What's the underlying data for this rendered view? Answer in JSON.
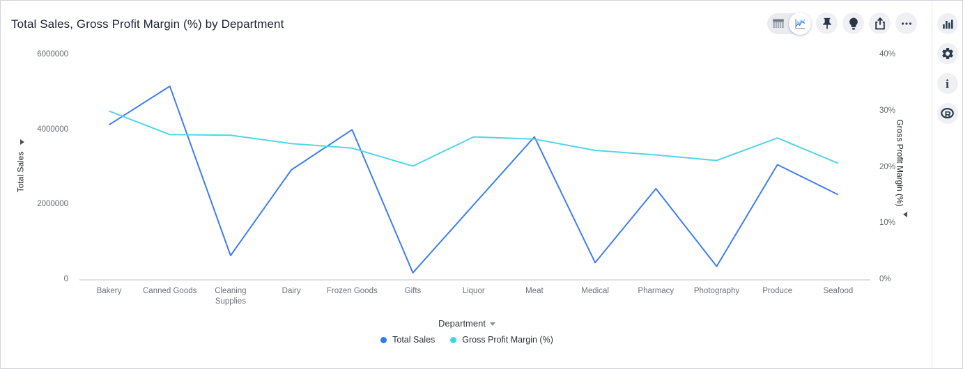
{
  "header": {
    "title": "Total Sales, Gross Profit Margin (%) by Department"
  },
  "toolbar": {
    "view_toggle": [
      {
        "name": "table-view-icon",
        "selected": false
      },
      {
        "name": "chart-view-icon",
        "selected": true
      }
    ],
    "buttons": [
      "pin-icon",
      "lightbulb-icon",
      "export-icon",
      "ellipsis-icon"
    ]
  },
  "side_rail": {
    "buttons": [
      "bar-chart-icon",
      "gear-icon",
      "info-icon",
      "r-logo-icon"
    ]
  },
  "chart_data": {
    "type": "line",
    "categories": [
      "Bakery",
      "Canned Goods",
      "Cleaning Supplies",
      "Dairy",
      "Frozen Goods",
      "Gifts",
      "Liquor",
      "Meat",
      "Medical",
      "Pharmacy",
      "Photography",
      "Produce",
      "Seafood"
    ],
    "series": [
      {
        "name": "Total Sales",
        "axis": "left",
        "color": "#3e7df0",
        "values": [
          4130000,
          5160000,
          650000,
          2930000,
          4000000,
          190000,
          2000000,
          3810000,
          460000,
          2430000,
          360000,
          3070000,
          2270000
        ]
      },
      {
        "name": "Gross Profit Margin (%)",
        "axis": "right",
        "color": "#52d5e5",
        "values": [
          30.0,
          25.8,
          25.7,
          24.2,
          23.4,
          20.2,
          25.4,
          25.0,
          23.0,
          22.2,
          21.2,
          25.2,
          20.7
        ]
      }
    ],
    "left_axis": {
      "title": "Total Sales",
      "min": 0,
      "max": 6000000,
      "ticks": [
        "6000000",
        "4000000",
        "2000000",
        "0"
      ]
    },
    "right_axis": {
      "title": "Gross Profit Margin (%)",
      "min": 0,
      "max": 40,
      "ticks": [
        "40%",
        "30%",
        "20%",
        "10%",
        "0%"
      ]
    },
    "x_axis": {
      "title": "Department"
    },
    "legend": {
      "position": "bottom",
      "items": [
        {
          "label": "Total Sales",
          "color": "#2e7cf0"
        },
        {
          "label": "Gross Profit Margin (%)",
          "color": "#41d6e6"
        }
      ]
    },
    "grid": false
  }
}
